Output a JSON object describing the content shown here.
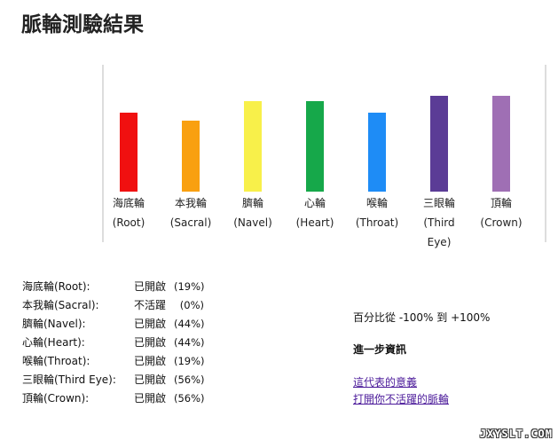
{
  "page": {
    "title": "脈輪測驗結果"
  },
  "chart_data": {
    "type": "bar",
    "categories": [
      [
        "海底輪",
        "(Root)"
      ],
      [
        "本我輪",
        "(Sacral)"
      ],
      [
        "臍輪",
        "(Navel)"
      ],
      [
        "心輪",
        "(Heart)"
      ],
      [
        "喉輪",
        "(Throat)"
      ],
      [
        "三眼輪(Third",
        "Eye)"
      ],
      [
        "頂輪",
        "(Crown)"
      ]
    ],
    "values": [
      19,
      0,
      44,
      44,
      19,
      56,
      56
    ],
    "ylim": [
      -100,
      100
    ],
    "colors": [
      "#f01010",
      "#f9a010",
      "#f8f04a",
      "#16a84a",
      "#1e8cf6",
      "#5b3c96",
      "#9f6fb4"
    ]
  },
  "results": [
    {
      "name": "海底輪(Root):",
      "state": "已開啟",
      "percent": "(19%)"
    },
    {
      "name": "本我輪(Sacral):",
      "state": "不活躍",
      "percent": "(0%)"
    },
    {
      "name": "臍輪(Navel):",
      "state": "已開啟",
      "percent": "(44%)"
    },
    {
      "name": "心輪(Heart):",
      "state": "已開啟",
      "percent": "(44%)"
    },
    {
      "name": "喉輪(Throat):",
      "state": "已開啟",
      "percent": "(19%)"
    },
    {
      "name": "三眼輪(Third Eye):",
      "state": "已開啟",
      "percent": "(56%)"
    },
    {
      "name": "頂輪(Crown):",
      "state": "已開啟",
      "percent": "(56%)"
    }
  ],
  "info": {
    "range_note": "百分比從 -100% 到 +100%",
    "more_title": "進一步資訊",
    "link_meaning": "這代表的意義",
    "link_open": "打開你不活躍的脈輪"
  },
  "watermark": "JXYSLT.COM"
}
